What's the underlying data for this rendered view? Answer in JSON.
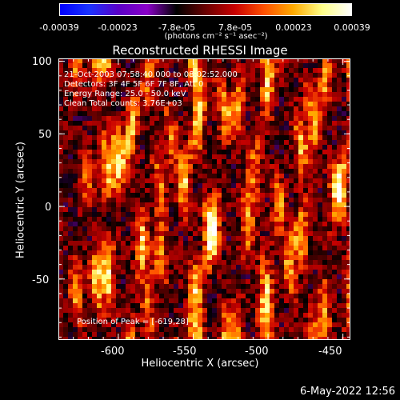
{
  "colorbar": {
    "tick_labels": [
      "-0.00039",
      "-0.00023",
      "-7.8e-05",
      "7.8e-05",
      "0.00023",
      "0.00039"
    ],
    "units": "(photons cm⁻² s⁻¹ asec⁻²)",
    "gradient_colors": [
      "#0000ff",
      "#1a33ff",
      "#5a00c8",
      "#8b00c8",
      "#000000",
      "#6a0000",
      "#c80000",
      "#ff5000",
      "#ffaa00",
      "#ffff88",
      "#ffffff"
    ]
  },
  "chart_data": {
    "type": "heatmap",
    "title": "Reconstructed RHESSI Image",
    "xlabel": "Heliocentric X (arcsec)",
    "ylabel": "Heliocentric Y (arcsec)",
    "xlim": [
      -640,
      -445
    ],
    "ylim": [
      -92,
      102
    ],
    "x_ticks": [
      -600,
      -550,
      -500,
      -450
    ],
    "y_ticks": [
      100,
      50,
      0,
      -50
    ],
    "peak": [
      -619,
      28
    ]
  },
  "info": {
    "time_range": "21-Oct-2003 07:58:40.000 to 08:02:52.000",
    "detectors": "Detectors: 3F 4F 5F 6F 7F 8F, Att 0",
    "energy_range": "Energy Range: 25.0 - 50.0 keV",
    "clean": "Clean     Total counts: 3.76E+03",
    "peak_position": "Position of Peak = [-619,28]"
  },
  "footer": {
    "date": "6-May-2022 12:56"
  }
}
